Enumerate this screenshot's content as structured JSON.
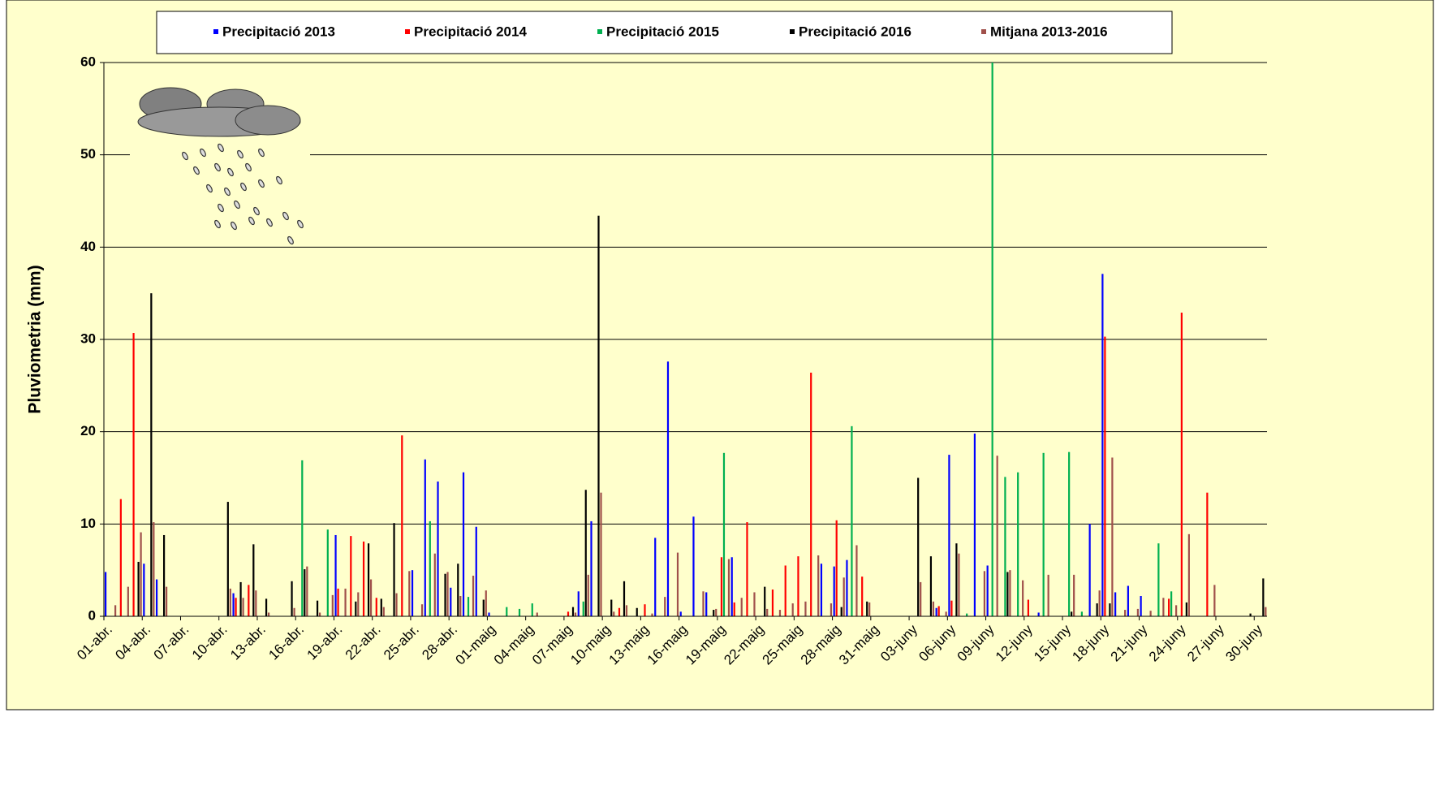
{
  "chart_data": {
    "type": "bar",
    "y_label": "Pluviometria (mm)",
    "ylim": [
      0,
      60
    ],
    "yticks": [
      0,
      10,
      20,
      30,
      40,
      50,
      60
    ],
    "grid": true,
    "legend": "top",
    "categories": [
      "01-abr.",
      null,
      null,
      "04-abr.",
      null,
      null,
      "07-abr.",
      null,
      null,
      "10-abr.",
      null,
      null,
      "13-abr.",
      null,
      null,
      "16-abr.",
      null,
      null,
      "19-abr.",
      null,
      null,
      "22-abr.",
      null,
      null,
      "25-abr.",
      null,
      null,
      "28-abr.",
      null,
      null,
      "01-maig",
      null,
      null,
      "04-maig",
      null,
      null,
      "07-maig",
      null,
      null,
      "10-maig",
      null,
      null,
      "13-maig",
      null,
      null,
      "16-maig",
      null,
      null,
      "19-maig",
      null,
      null,
      "22-maig",
      null,
      null,
      "25-maig",
      null,
      null,
      "28-maig",
      null,
      null,
      "31-maig",
      null,
      null,
      "03-juny",
      null,
      null,
      "06-juny",
      null,
      null,
      "09-juny",
      null,
      null,
      "12-juny",
      null,
      null,
      "15-juny",
      null,
      null,
      "18-juny",
      null,
      null,
      "21-juny",
      null,
      null,
      "24-juny",
      null,
      null,
      "27-juny",
      null,
      null,
      "30-juny"
    ],
    "series": [
      {
        "name": "Precipitació 2013",
        "color": "#0000ff",
        "values": [
          4.8,
          0,
          0,
          5.7,
          4.0,
          0,
          0,
          0,
          0,
          0,
          2.5,
          0,
          0,
          0,
          0,
          0,
          0,
          0,
          8.8,
          0,
          0,
          0,
          0,
          0,
          5.0,
          17.0,
          14.6,
          3.1,
          15.6,
          9.7,
          0.4,
          0,
          0,
          0,
          0,
          0,
          0,
          2.7,
          10.3,
          0,
          0,
          0,
          0,
          8.5,
          27.6,
          0.5,
          10.8,
          2.6,
          0,
          6.4,
          0,
          0,
          0,
          0,
          0,
          0,
          5.7,
          5.4,
          6.1,
          0,
          0,
          0,
          0,
          0,
          0,
          0.9,
          17.5,
          0,
          19.8,
          5.5,
          0,
          0,
          0,
          0.4,
          0,
          0,
          0,
          10.0,
          37.1,
          2.6,
          3.3,
          2.2,
          0,
          0,
          0,
          0,
          0,
          0,
          0,
          0,
          0
        ]
      },
      {
        "name": "Precipitació 2014",
        "color": "#ff0000",
        "values": [
          0,
          12.7,
          30.7,
          0,
          0,
          0,
          0,
          0,
          0,
          0,
          2.0,
          3.4,
          0,
          0,
          0,
          0,
          0,
          0,
          3.0,
          8.7,
          8.1,
          2.0,
          0,
          19.6,
          0,
          0,
          0,
          0,
          0,
          0,
          0,
          0,
          0,
          0,
          0,
          0,
          0.5,
          0,
          0,
          0,
          0.9,
          0,
          1.3,
          0,
          0,
          0,
          0,
          0,
          6.4,
          1.5,
          10.2,
          0,
          2.9,
          5.5,
          6.5,
          26.4,
          0,
          10.4,
          0,
          4.3,
          0,
          0,
          0,
          0,
          0,
          1.1,
          1.7,
          0,
          0,
          0,
          0,
          0,
          1.8,
          0,
          0,
          0,
          0,
          0,
          30.3,
          0,
          0,
          0,
          0,
          1.9,
          32.9,
          0,
          13.4,
          0,
          0,
          0,
          0
        ]
      },
      {
        "name": "Precipitació 2015",
        "color": "#00b050",
        "values": [
          0,
          0,
          0,
          0,
          0,
          0,
          0,
          0,
          0,
          0,
          0,
          0,
          0,
          0,
          0,
          16.9,
          0,
          9.4,
          0,
          0,
          0,
          0,
          0,
          0,
          0,
          10.3,
          0,
          0,
          2.1,
          0,
          0,
          1.0,
          0.8,
          1.4,
          0,
          0,
          0,
          1.6,
          0,
          0,
          0,
          0,
          0,
          0,
          0,
          0,
          0,
          0,
          17.7,
          0,
          0,
          0,
          0,
          0,
          0,
          0,
          0,
          0,
          20.6,
          0,
          0,
          0,
          0,
          0,
          0,
          0,
          0,
          0.3,
          0,
          60,
          15.1,
          15.6,
          0,
          17.7,
          0,
          17.8,
          0.5,
          0,
          0,
          0,
          0,
          0,
          7.9,
          2.7,
          0,
          0,
          0,
          0,
          0,
          0,
          0
        ]
      },
      {
        "name": "Precipitació 2016",
        "color": "#000000",
        "values": [
          0,
          0,
          5.9,
          35,
          8.8,
          0,
          0,
          0,
          0,
          12.4,
          3.7,
          7.8,
          1.9,
          0,
          3.8,
          5.1,
          1.7,
          0,
          0,
          1.6,
          7.9,
          1.9,
          10.1,
          0,
          0,
          0,
          4.6,
          5.7,
          0,
          1.8,
          0,
          0,
          0,
          0,
          0,
          0,
          1.0,
          13.7,
          43.4,
          1.8,
          3.8,
          0.9,
          0,
          0,
          0,
          0,
          0,
          0.7,
          0,
          0,
          0,
          3.2,
          0,
          0,
          0,
          0,
          0,
          1.0,
          0,
          1.6,
          0,
          0,
          0,
          15.0,
          6.5,
          0,
          7.9,
          0,
          0,
          0,
          4.8,
          0,
          0,
          0,
          0,
          0.5,
          0,
          1.4,
          1.4,
          0,
          0,
          0,
          0,
          0,
          1.5,
          0,
          0,
          0,
          0,
          0.3,
          4.1
        ]
      },
      {
        "name": "Mitjana 2013-2016",
        "color": "#a0504b",
        "values": [
          1.2,
          3.2,
          9.1,
          10.2,
          3.2,
          0,
          0,
          0,
          0,
          3.0,
          2.0,
          2.8,
          0.4,
          0,
          0.9,
          5.4,
          0.4,
          2.3,
          3.0,
          2.6,
          4.0,
          1.0,
          2.5,
          4.9,
          1.3,
          6.8,
          4.8,
          2.2,
          4.4,
          2.8,
          0,
          0,
          0,
          0.4,
          0,
          0,
          0.4,
          4.5,
          13.4,
          0.5,
          1.2,
          0,
          0.3,
          2.1,
          6.9,
          0,
          2.7,
          0.8,
          6.2,
          2.0,
          2.6,
          0.8,
          0.7,
          1.4,
          1.6,
          6.6,
          1.4,
          4.2,
          7.7,
          1.5,
          0,
          0,
          0,
          3.7,
          1.6,
          0.5,
          6.8,
          0,
          4.9,
          17.4,
          5.0,
          3.9,
          0,
          4.5,
          0,
          4.5,
          0,
          2.8,
          17.2,
          0.7,
          0.8,
          0.6,
          2.0,
          1.2,
          8.9,
          0,
          3.4,
          0,
          0,
          0,
          1.0
        ]
      }
    ]
  }
}
